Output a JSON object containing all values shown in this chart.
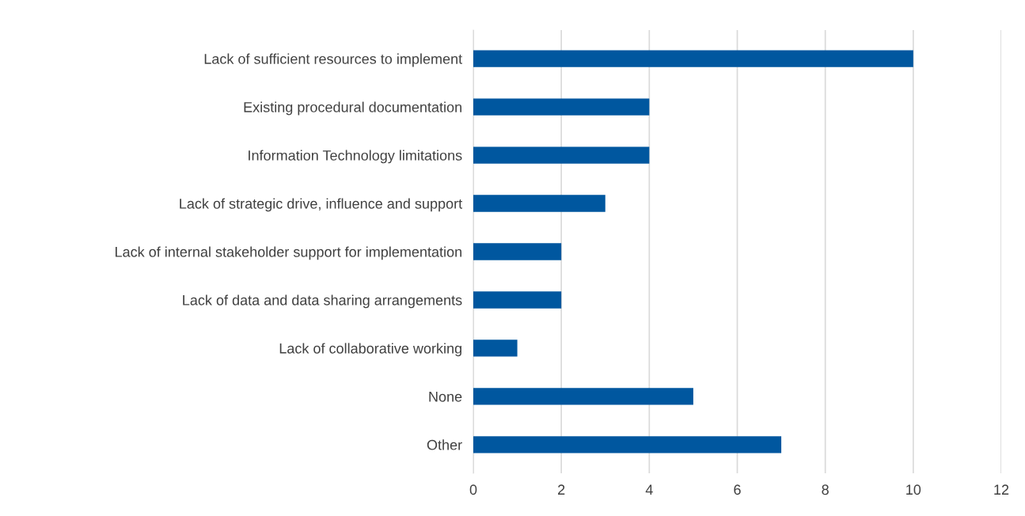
{
  "chart_data": {
    "type": "bar",
    "orientation": "horizontal",
    "categories": [
      "Lack of sufficient resources to implement",
      "Existing procedural documentation",
      "Information Technology limitations",
      "Lack of strategic drive, influence and support",
      "Lack of internal stakeholder support for implementation",
      "Lack of data and data sharing arrangements",
      "Lack of collaborative working",
      "None",
      "Other"
    ],
    "values": [
      10,
      4,
      4,
      3,
      2,
      2,
      1,
      5,
      7
    ],
    "color": "#00579f",
    "xlim": [
      0,
      12
    ],
    "xticks": [
      0,
      2,
      4,
      6,
      8,
      10,
      12
    ],
    "grid": "x"
  }
}
